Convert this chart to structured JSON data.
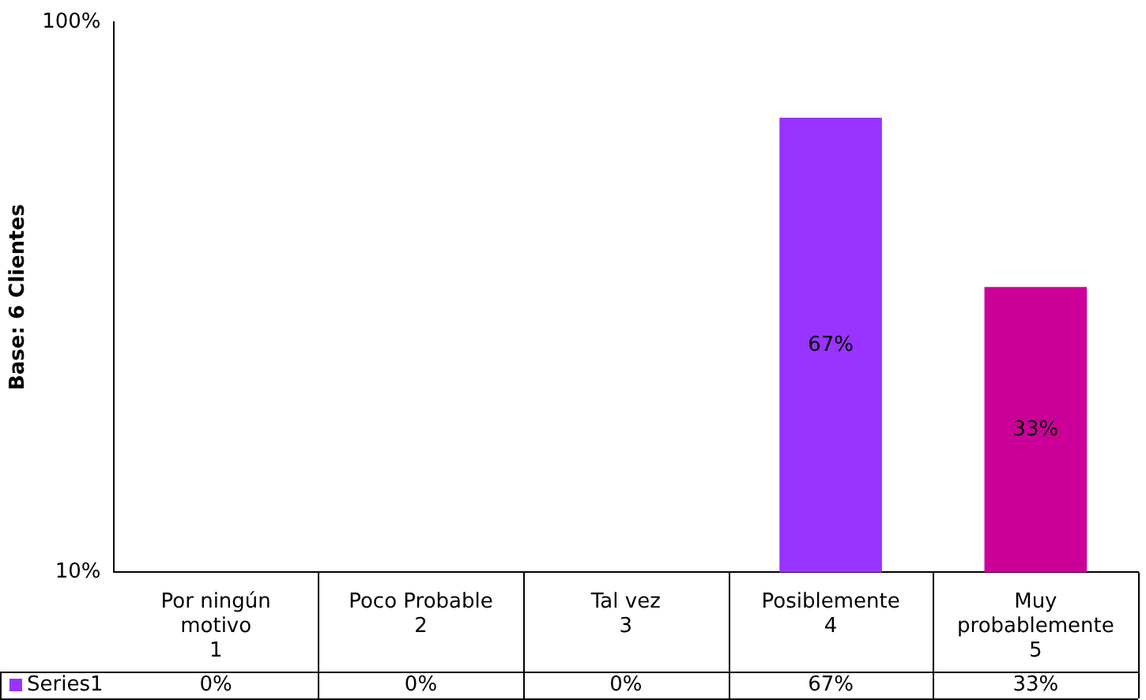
{
  "chart_data": {
    "type": "bar",
    "ylabel": "Base: 6 Clientes",
    "categories": [
      "Por ningún motivo\n1",
      "Poco Probable\n2",
      "Tal vez\n3",
      "Posiblemente\n4",
      "Muy probablemente\n5"
    ],
    "series": [
      {
        "name": "Series1",
        "color": "#9933ff",
        "colors": [
          "#9933ff",
          "#9933ff",
          "#9933ff",
          "#9933ff",
          "#cc0099"
        ],
        "values": [
          null,
          null,
          null,
          67,
          33
        ],
        "value_labels": [
          "0%",
          "0%",
          "0%",
          "67%",
          "33%"
        ]
      }
    ],
    "log": true,
    "ylim": [
      10,
      100
    ],
    "yticks": [
      {
        "value": 10,
        "label": "10%"
      },
      {
        "value": 100,
        "label": "100%"
      }
    ]
  }
}
